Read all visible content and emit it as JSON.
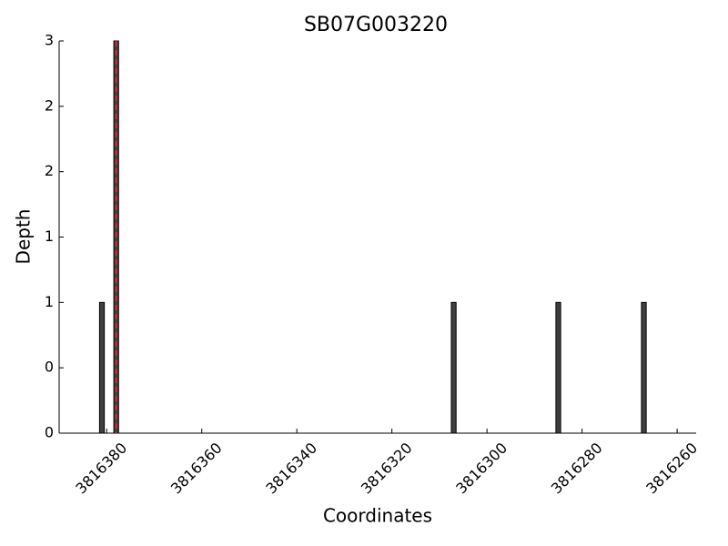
{
  "chart_data": {
    "type": "bar",
    "title": "SB07G003220",
    "x_label": "Coordinates",
    "y_label": "Depth",
    "x": [
      3816381,
      3816378,
      3816307,
      3816285,
      3816267
    ],
    "values": [
      1,
      3,
      1,
      1,
      1
    ],
    "color": "#404040",
    "edge_color": "#000000",
    "xlim": [
      3816390,
      3816256
    ],
    "xticks": [
      3816380,
      3816360,
      3816340,
      3816320,
      3816300,
      3816280,
      3816260
    ],
    "ylim": [
      0,
      3
    ],
    "yticks": [
      0,
      {
        "value": 0.5,
        "label": "0"
      },
      1,
      {
        "value": 1.5,
        "label": "1"
      },
      2,
      {
        "value": 2.5,
        "label": "2"
      },
      3
    ],
    "marker_line": {
      "x": 3816378,
      "color": "#e8202a"
    }
  }
}
